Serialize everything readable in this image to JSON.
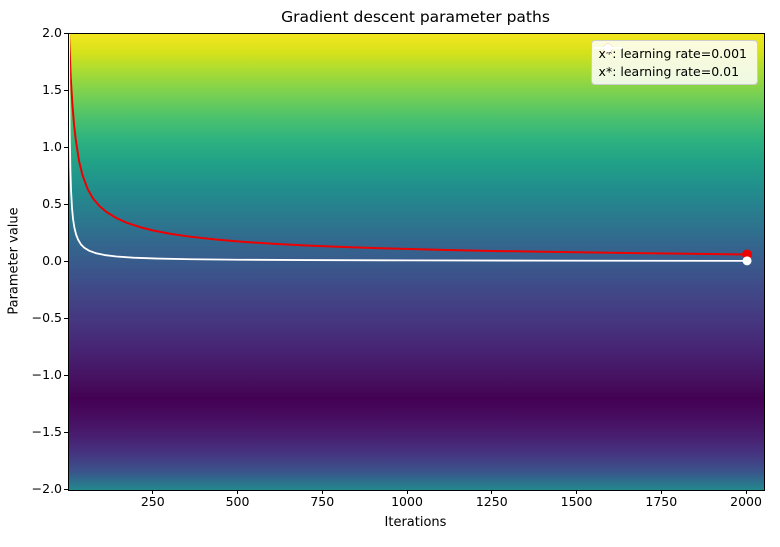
{
  "chart_data": {
    "type": "line",
    "title": "Gradient descent parameter paths",
    "xlabel": "Iterations",
    "ylabel": "Parameter value",
    "xlim": [
      0,
      2050
    ],
    "ylim": [
      -2,
      2
    ],
    "grid": false,
    "legend_position": "upper right",
    "x_ticks": [
      {
        "value": 250,
        "label": "250"
      },
      {
        "value": 500,
        "label": "500"
      },
      {
        "value": 750,
        "label": "750"
      },
      {
        "value": 1000,
        "label": "1000"
      },
      {
        "value": 1250,
        "label": "1250"
      },
      {
        "value": 1500,
        "label": "1500"
      },
      {
        "value": 1750,
        "label": "1750"
      },
      {
        "value": 2000,
        "label": "2000"
      }
    ],
    "y_ticks": [
      {
        "value": 2.0,
        "label": "2.0"
      },
      {
        "value": 1.5,
        "label": "1.5"
      },
      {
        "value": 1.0,
        "label": "1.0"
      },
      {
        "value": 0.5,
        "label": "0.5"
      },
      {
        "value": 0.0,
        "label": "0.0"
      },
      {
        "value": -0.5,
        "label": "−0.5"
      },
      {
        "value": -1.0,
        "label": "−1.0"
      },
      {
        "value": -1.5,
        "label": "−1.5"
      },
      {
        "value": -2.0,
        "label": "−2.0"
      }
    ],
    "background": {
      "description": "viridis colormap of objective value over parameter space, darkest near y=-1.2",
      "stops": [
        {
          "pos": 0,
          "color": "#f3e51e"
        },
        {
          "pos": 4,
          "color": "#d6e21b"
        },
        {
          "pos": 8,
          "color": "#aadc32"
        },
        {
          "pos": 13,
          "color": "#7ad151"
        },
        {
          "pos": 18,
          "color": "#4ec36b"
        },
        {
          "pos": 23,
          "color": "#2eb37f"
        },
        {
          "pos": 28,
          "color": "#21a287"
        },
        {
          "pos": 34,
          "color": "#218e8d"
        },
        {
          "pos": 40,
          "color": "#2a7a8e"
        },
        {
          "pos": 46,
          "color": "#33678e"
        },
        {
          "pos": 52,
          "color": "#3b558b"
        },
        {
          "pos": 58,
          "color": "#424486"
        },
        {
          "pos": 64,
          "color": "#46337e"
        },
        {
          "pos": 70,
          "color": "#472272"
        },
        {
          "pos": 76,
          "color": "#46105f"
        },
        {
          "pos": 80,
          "color": "#440154"
        },
        {
          "pos": 84,
          "color": "#470d60"
        },
        {
          "pos": 88,
          "color": "#481d6f"
        },
        {
          "pos": 92,
          "color": "#463480"
        },
        {
          "pos": 96,
          "color": "#3a548b"
        },
        {
          "pos": 100,
          "color": "#23898e"
        }
      ]
    },
    "series": [
      {
        "name": "x*: learning rate=0.001",
        "color": "#ee0000",
        "width": 2,
        "marker_radius": 5,
        "x": [
          0,
          5,
          10,
          15,
          20,
          30,
          40,
          55,
          70,
          90,
          110,
          140,
          170,
          210,
          250,
          300,
          360,
          430,
          510,
          600,
          700,
          820,
          950,
          1100,
          1250,
          1400,
          1600,
          1800,
          2000
        ],
        "y": [
          2.0,
          1.62,
          1.38,
          1.2,
          1.07,
          0.88,
          0.76,
          0.64,
          0.56,
          0.49,
          0.44,
          0.385,
          0.345,
          0.305,
          0.275,
          0.247,
          0.221,
          0.198,
          0.178,
          0.16,
          0.145,
          0.13,
          0.118,
          0.106,
          0.097,
          0.09,
          0.081,
          0.073,
          0.066
        ]
      },
      {
        "name": "x*: learning rate=0.01",
        "color": "#ffffff",
        "width": 1.8,
        "marker_radius": 4.5,
        "x": [
          0,
          1,
          2,
          4,
          6,
          9,
          12,
          16,
          21,
          27,
          35,
          45,
          60,
          80,
          105,
          140,
          190,
          260,
          360,
          500,
          700,
          1000,
          1400,
          2000
        ],
        "y": [
          2.0,
          1.45,
          1.15,
          0.82,
          0.63,
          0.47,
          0.375,
          0.3,
          0.24,
          0.195,
          0.155,
          0.125,
          0.098,
          0.077,
          0.061,
          0.048,
          0.038,
          0.03,
          0.024,
          0.02,
          0.017,
          0.014,
          0.012,
          0.01
        ]
      }
    ]
  }
}
